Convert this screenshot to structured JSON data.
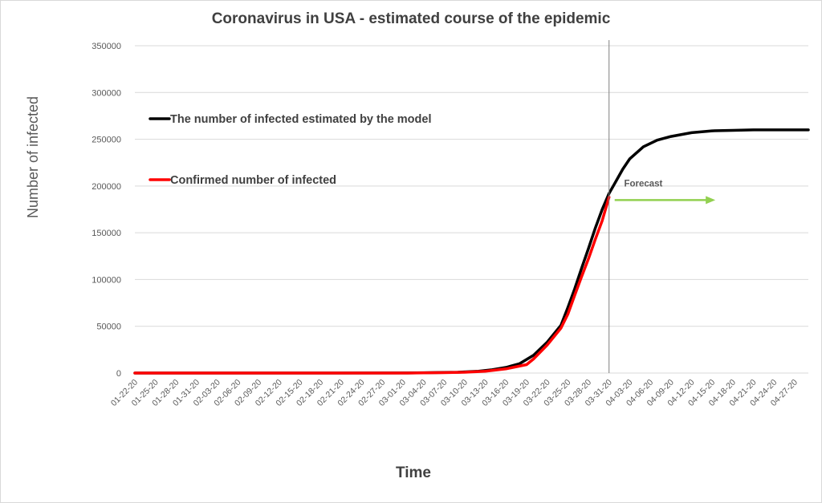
{
  "chart_data": {
    "type": "line",
    "title": "Coronavirus in USA - estimated course of the epidemic",
    "xlabel": "Time",
    "ylabel": "Number of infected",
    "ylim": [
      0,
      350000
    ],
    "yticks": [
      0,
      50000,
      100000,
      150000,
      200000,
      250000,
      300000,
      350000
    ],
    "grid": true,
    "legend_position": "top-left",
    "x_tick_labels": [
      "01-22-20",
      "01-25-20",
      "01-28-20",
      "01-31-20",
      "02-03-20",
      "02-06-20",
      "02-09-20",
      "02-12-20",
      "02-15-20",
      "02-18-20",
      "02-21-20",
      "02-24-20",
      "02-27-20",
      "03-01-20",
      "03-04-20",
      "03-07-20",
      "03-10-20",
      "03-13-20",
      "03-16-20",
      "03-19-20",
      "03-22-20",
      "03-25-20",
      "03-28-20",
      "03-31-20",
      "04-03-20",
      "04-06-20",
      "04-09-20",
      "04-12-20",
      "04-15-20",
      "04-18-20",
      "04-21-20",
      "04-24-20",
      "04-27-20"
    ],
    "x_start": "01-22-20",
    "series": [
      {
        "name": "The number of infected estimated by the model",
        "color": "#000000",
        "points": [
          [
            "01-22-20",
            0
          ],
          [
            "02-20-20",
            0
          ],
          [
            "03-03-20",
            200
          ],
          [
            "03-06-20",
            500
          ],
          [
            "03-09-20",
            900
          ],
          [
            "03-12-20",
            2000
          ],
          [
            "03-14-20",
            3500
          ],
          [
            "03-16-20",
            6000
          ],
          [
            "03-18-20",
            10000
          ],
          [
            "03-20-20",
            19000
          ],
          [
            "03-22-20",
            33000
          ],
          [
            "03-24-20",
            51000
          ],
          [
            "03-25-20",
            70000
          ],
          [
            "03-26-20",
            90000
          ],
          [
            "03-27-20",
            112000
          ],
          [
            "03-28-20",
            133000
          ],
          [
            "03-29-20",
            155000
          ],
          [
            "03-30-20",
            175000
          ],
          [
            "03-31-20",
            192000
          ],
          [
            "04-01-20",
            205000
          ],
          [
            "04-02-20",
            218000
          ],
          [
            "04-03-20",
            229000
          ],
          [
            "04-05-20",
            242000
          ],
          [
            "04-07-20",
            249000
          ],
          [
            "04-09-20",
            253000
          ],
          [
            "04-12-20",
            257000
          ],
          [
            "04-15-20",
            259000
          ],
          [
            "04-18-20",
            259500
          ],
          [
            "04-21-20",
            260000
          ],
          [
            "04-24-20",
            260000
          ],
          [
            "04-29-20",
            260000
          ]
        ]
      },
      {
        "name": "Confirmed number of infected",
        "color": "#ff0000",
        "points": [
          [
            "01-22-20",
            0
          ],
          [
            "03-01-20",
            0
          ],
          [
            "03-04-20",
            150
          ],
          [
            "03-07-20",
            400
          ],
          [
            "03-10-20",
            900
          ],
          [
            "03-13-20",
            2000
          ],
          [
            "03-16-20",
            4500
          ],
          [
            "03-19-20",
            9000
          ],
          [
            "03-20-20",
            15000
          ],
          [
            "03-22-20",
            30000
          ],
          [
            "03-24-20",
            48000
          ],
          [
            "03-25-20",
            63000
          ],
          [
            "03-26-20",
            83000
          ],
          [
            "03-27-20",
            103000
          ],
          [
            "03-28-20",
            122000
          ],
          [
            "03-29-20",
            143000
          ],
          [
            "03-30-20",
            163000
          ],
          [
            "03-31-20",
            188000
          ]
        ]
      }
    ],
    "annotations": [
      {
        "text": "Forecast",
        "arrow_from": "03-31-20",
        "arrow_to": "04-15-20",
        "value": 185000,
        "arrow_color": "#92d050"
      }
    ],
    "forecast_divider": "03-31-20",
    "colors": {
      "grid": "#d9d9d9",
      "axis_text": "#595959",
      "title_text": "#404040",
      "divider": "#808080"
    }
  }
}
